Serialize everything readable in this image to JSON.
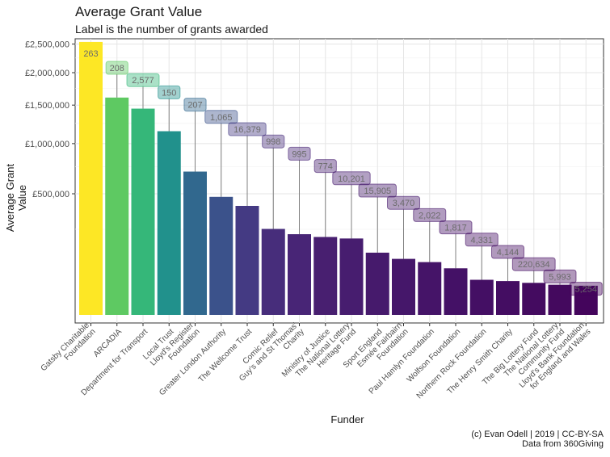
{
  "chart_data": {
    "type": "bar",
    "title": "Average Grant Value",
    "subtitle": "Label is the number of grants awarded",
    "xlabel": "Funder",
    "ylabel": "Average Grant Value",
    "y_scale": "sqrt",
    "ylim": [
      0,
      2550000
    ],
    "yticks": [
      500000,
      1000000,
      1500000,
      2000000,
      2500000
    ],
    "ytick_labels": [
      "£500,000",
      "£1,000,000",
      "£1,500,000",
      "£2,000,000",
      "£2,500,000"
    ],
    "grid": true,
    "legend": "none",
    "categories": [
      "Gatsby Charitable Foundation",
      "ARCADIA",
      "Department for Transport",
      "Local Trust",
      "Lloyd's Register Foundation",
      "Greater London Authority",
      "The Wellcome Trust",
      "Comic Relief",
      "Guy's and St Thomas' Charity",
      "Ministry of Justice",
      "The National Lottery Heritage Fund",
      "Sport England",
      "Esmée Fairbairn Foundation",
      "Paul Hamlyn Foundation",
      "Wolfson Foundation",
      "Northern Rock Foundation",
      "The Henry Smith Charity",
      "The Big Lottery Fund",
      "The National Lottery Community Fund",
      "Lloyd's Bank Foundation for England and Wales"
    ],
    "tick_labels": [
      [
        "Gatsby Charitable",
        "Foundation"
      ],
      [
        "ARCADIA"
      ],
      [
        "Department for Transport"
      ],
      [
        "Local Trust"
      ],
      [
        "Lloyd's Register",
        "Foundation"
      ],
      [
        "Greater London Authority"
      ],
      [
        "The Wellcome Trust"
      ],
      [
        "Comic Relief"
      ],
      [
        "Guy's and St Thomas'",
        "Charity"
      ],
      [
        "Ministry of Justice"
      ],
      [
        "The National Lottery",
        "Heritage Fund"
      ],
      [
        "Sport England"
      ],
      [
        "Esmée Fairbairn",
        "Foundation"
      ],
      [
        "Paul Hamlyn Foundation"
      ],
      [
        "Wolfson Foundation"
      ],
      [
        "Northern Rock Foundation"
      ],
      [
        "The Henry Smith Charity"
      ],
      [
        "The Big Lottery Fund"
      ],
      [
        "The National Lottery",
        "Community Fund"
      ],
      [
        "Lloyd's Bank Foundation",
        "for England and Wales"
      ]
    ],
    "values": [
      2540000,
      1610000,
      1450000,
      1150000,
      700000,
      475000,
      405000,
      252000,
      222000,
      207000,
      199000,
      132000,
      107000,
      95000,
      74000,
      42000,
      39000,
      35000,
      31000,
      29000
    ],
    "labels": [
      "263",
      "208",
      "2,577",
      "150",
      "207",
      "1,065",
      "16,379",
      "998",
      "995",
      "774",
      "10,201",
      "15,905",
      "3,470",
      "2,022",
      "1,817",
      "4,331",
      "4,144",
      "220,634",
      "5,993",
      "5,254"
    ],
    "colors": [
      "#fde725",
      "#5ec962",
      "#35b779",
      "#21918c",
      "#31688e",
      "#3b528b",
      "#443a83",
      "#472d7b",
      "#482576",
      "#481f70",
      "#471d6f",
      "#461a6c",
      "#45176a",
      "#451468",
      "#441166",
      "#440f64",
      "#440d62",
      "#440b60",
      "#44095e",
      "#44055c"
    ]
  },
  "caption": {
    "line1": "(c) Evan Odell | 2019 | CC-BY-SA",
    "line2": "Data from 360Giving"
  }
}
